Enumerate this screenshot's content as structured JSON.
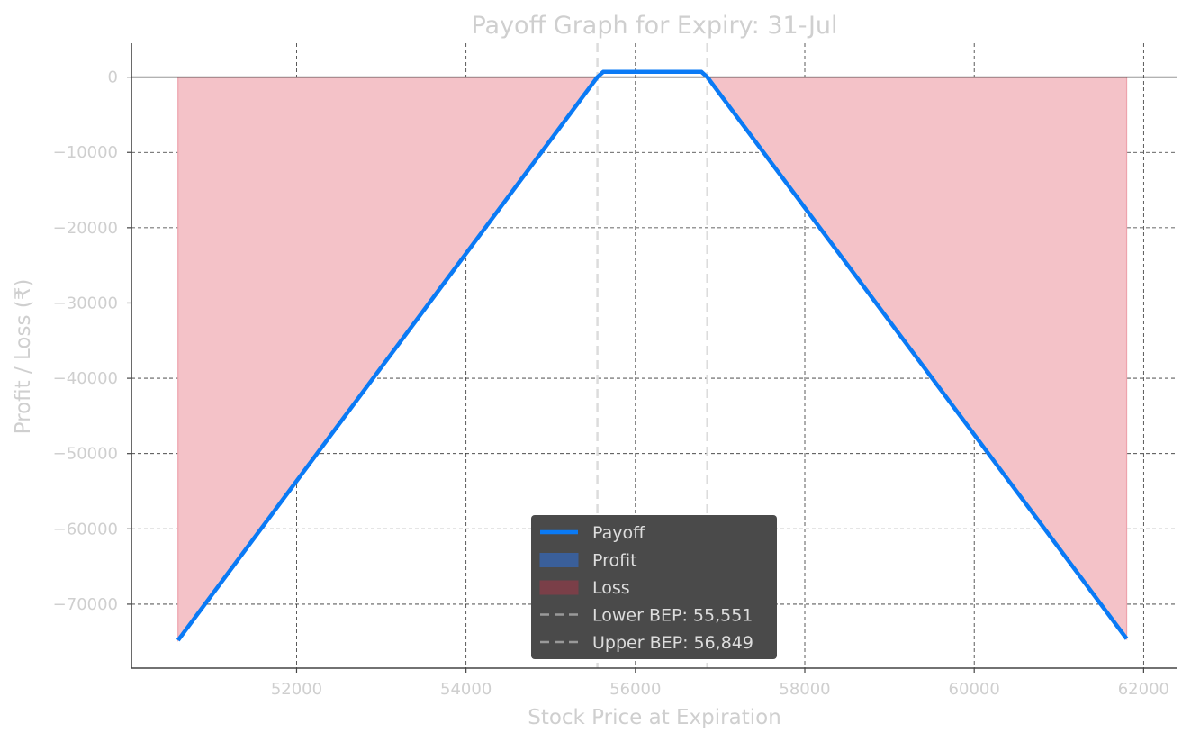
{
  "chart_data": {
    "type": "line",
    "title": "Payoff Graph for Expiry: 31-Jul",
    "xlabel": "Stock Price at Expiration",
    "ylabel": "Profit / Loss (₹)",
    "xlim": [
      50050,
      62400
    ],
    "ylim": [
      -78500,
      4500
    ],
    "xticks": [
      52000,
      54000,
      56000,
      58000,
      60000,
      62000
    ],
    "yticks": [
      0,
      -10000,
      -20000,
      -30000,
      -40000,
      -50000,
      -60000,
      -70000
    ],
    "grid": true,
    "legend_position": "lower-center",
    "series": [
      {
        "name": "Payoff",
        "color": "#0a7af5",
        "x": [
          50600,
          55551,
          55620,
          56780,
          56849,
          61800
        ],
        "y": [
          -74800,
          0,
          700,
          700,
          0,
          -74600
        ]
      }
    ],
    "fills": [
      {
        "name": "Profit",
        "color": "#3a5f9a",
        "region": "payoff above 0"
      },
      {
        "name": "Loss",
        "color": "#f4c2c8",
        "region": "payoff below 0"
      }
    ],
    "break_even": {
      "lower": {
        "label": "Lower BEP: 55,551",
        "value": 55551
      },
      "upper": {
        "label": "Upper BEP: 56,849",
        "value": 56849
      }
    },
    "legend": [
      {
        "label": "Payoff",
        "kind": "line",
        "color": "#0a7af5"
      },
      {
        "label": "Profit",
        "kind": "patch",
        "color": "#3a5f9a"
      },
      {
        "label": "Loss",
        "kind": "patch",
        "color": "#7a3f48"
      },
      {
        "label": "Lower BEP: 55,551",
        "kind": "dash",
        "color": "#9a9a9a"
      },
      {
        "label": "Upper BEP: 56,849",
        "kind": "dash",
        "color": "#9a9a9a"
      }
    ]
  }
}
